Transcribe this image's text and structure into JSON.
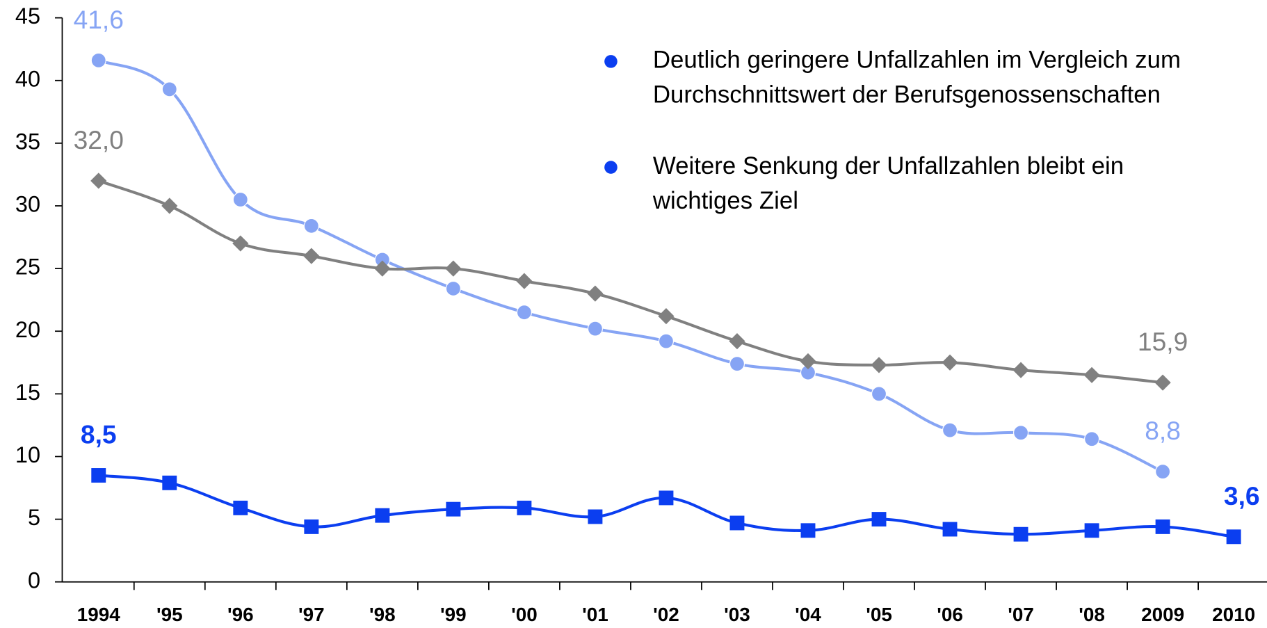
{
  "chart_data": {
    "type": "line",
    "categories": [
      "1994",
      "'95",
      "'96",
      "'97",
      "'98",
      "'99",
      "'00",
      "'01",
      "'02",
      "'03",
      "'04",
      "'05",
      "'06",
      "'07",
      "'08",
      "2009",
      "2010"
    ],
    "series": [
      {
        "color": "#86a4f4",
        "marker": "circle",
        "values": [
          41.6,
          39.3,
          30.5,
          28.4,
          25.7,
          23.4,
          21.5,
          20.2,
          19.2,
          17.4,
          16.7,
          15.0,
          12.1,
          11.9,
          11.4,
          8.8,
          null
        ],
        "value_labels": [
          "41,6",
          null,
          null,
          null,
          null,
          null,
          null,
          null,
          null,
          null,
          null,
          null,
          null,
          null,
          null,
          "8,8",
          null
        ]
      },
      {
        "color": "#808080",
        "marker": "diamond",
        "values": [
          32.0,
          30.0,
          27.0,
          26.0,
          25.0,
          25.0,
          24.0,
          23.0,
          21.2,
          19.2,
          17.6,
          17.3,
          17.5,
          16.9,
          16.5,
          15.9,
          null
        ],
        "value_labels": [
          "32,0",
          null,
          null,
          null,
          null,
          null,
          null,
          null,
          null,
          null,
          null,
          null,
          null,
          null,
          null,
          "15,9",
          null
        ]
      },
      {
        "color": "#0b3ef0",
        "marker": "square",
        "label_bold": true,
        "values": [
          8.5,
          7.9,
          5.9,
          4.4,
          5.3,
          5.8,
          5.9,
          5.2,
          6.7,
          4.7,
          4.1,
          5.0,
          4.2,
          3.8,
          4.1,
          4.4,
          3.6
        ],
        "value_labels": [
          "8,5",
          null,
          null,
          null,
          null,
          null,
          null,
          null,
          null,
          null,
          null,
          null,
          null,
          null,
          null,
          null,
          "3,6"
        ]
      }
    ],
    "ylim": [
      0,
      45
    ],
    "yticks": [
      0,
      5,
      10,
      15,
      20,
      25,
      30,
      35,
      40,
      45
    ],
    "bullets": [
      [
        "Deutlich geringere Unfallzahlen im Vergleich zum",
        "Durchschnittswert der Berufsgenossenschaften"
      ],
      [
        "Weitere Senkung der Unfallzahlen bleibt ein",
        "wichtiges Ziel"
      ]
    ]
  }
}
